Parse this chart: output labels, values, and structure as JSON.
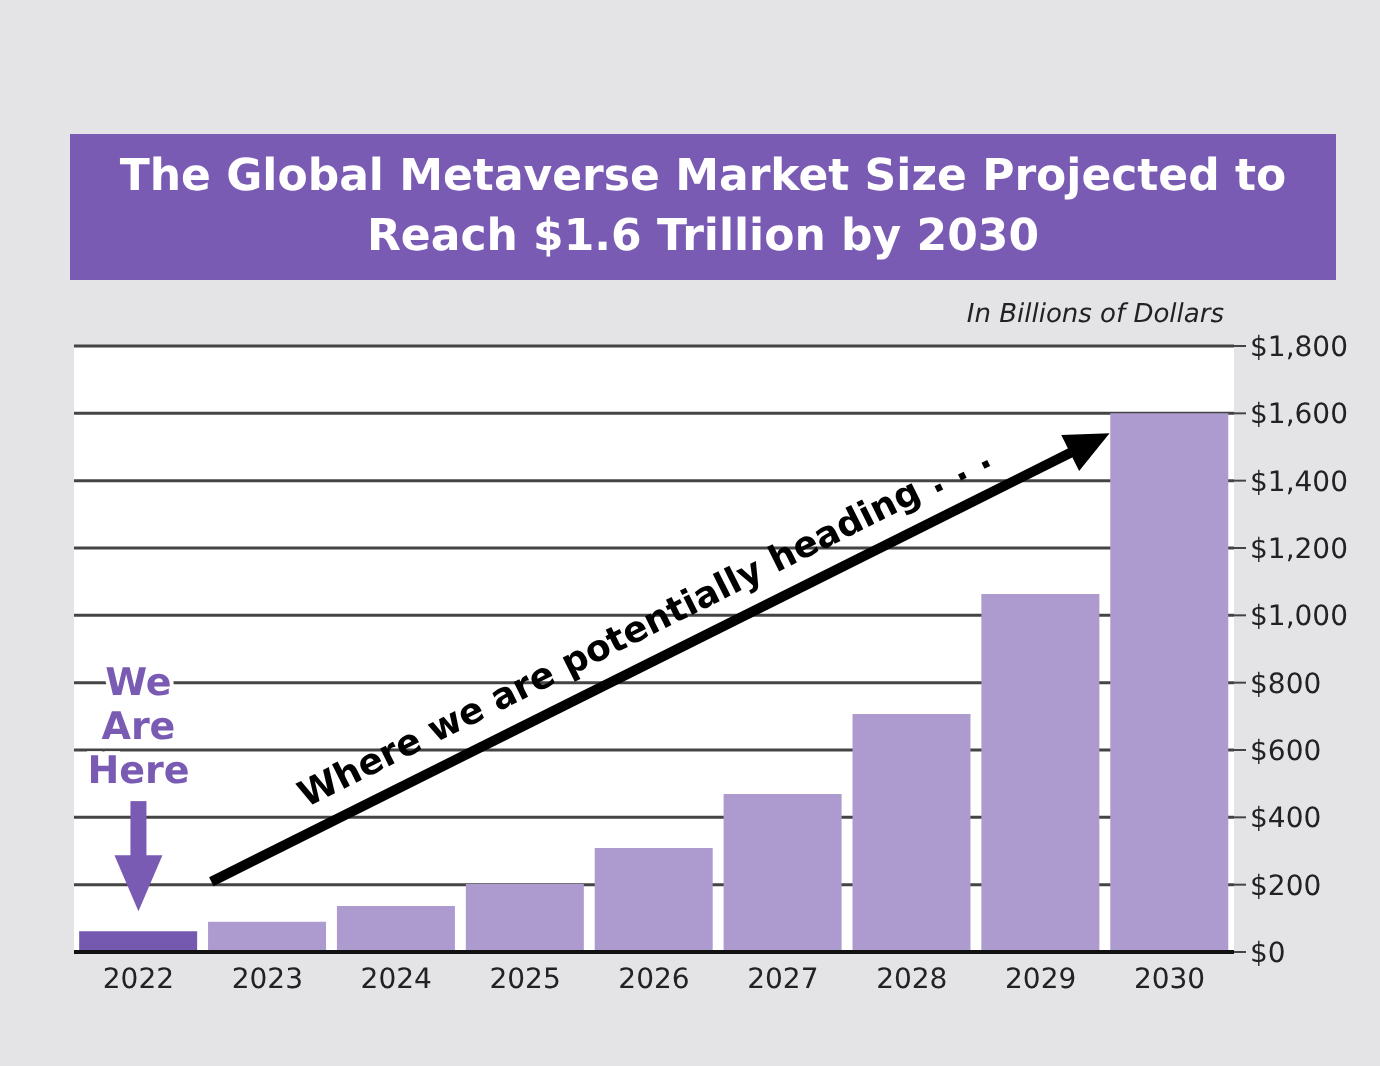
{
  "chart_data": {
    "type": "bar",
    "title": "The Global Metaverse Market Size Projected to Reach $1.6 Trillion by 2030",
    "ylabel": "In Billions of Dollars",
    "categories": [
      "2022",
      "2023",
      "2024",
      "2025",
      "2026",
      "2027",
      "2028",
      "2029",
      "2030"
    ],
    "values": [
      62,
      90,
      137,
      202,
      309,
      469,
      707,
      1063,
      1600
    ],
    "colors": [
      "#7558b0",
      "#ad9bd0",
      "#ad9bd0",
      "#ad9bd0",
      "#ad9bd0",
      "#ad9bd0",
      "#ad9bd0",
      "#ad9bd0",
      "#ad9bd0"
    ],
    "ylim": [
      0,
      1800
    ],
    "yticks": [
      {
        "value": 0,
        "label": "$0"
      },
      {
        "value": 200,
        "label": "$200"
      },
      {
        "value": 400,
        "label": "$400"
      },
      {
        "value": 600,
        "label": "$600"
      },
      {
        "value": 800,
        "label": "$800"
      },
      {
        "value": 1000,
        "label": "$1,000"
      },
      {
        "value": 1200,
        "label": "$1,200"
      },
      {
        "value": 1400,
        "label": "$1,400"
      },
      {
        "value": 1600,
        "label": "$1,600"
      },
      {
        "value": 1800,
        "label": "$1,800"
      }
    ],
    "grid": "y",
    "annotations": [
      "We Are Here",
      "Where we are potentially heading . . ."
    ]
  }
}
